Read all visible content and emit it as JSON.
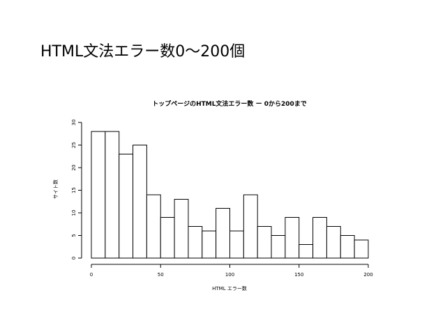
{
  "slide": {
    "title": "HTML文法エラー数0〜200個"
  },
  "chart_data": {
    "type": "bar",
    "title": "トップページのHTML文法エラー数 ー 0から200まで",
    "xlabel": "HTML エラー数",
    "ylabel": "サイト数",
    "bin_width": 10,
    "bin_start": 0,
    "xlim": [
      0,
      200
    ],
    "ylim": [
      0,
      30
    ],
    "x_ticks": [
      0,
      50,
      100,
      150,
      200
    ],
    "y_ticks": [
      0,
      5,
      10,
      15,
      20,
      25,
      30
    ],
    "values": [
      28,
      28,
      23,
      25,
      14,
      9,
      13,
      7,
      6,
      11,
      6,
      14,
      7,
      5,
      9,
      3,
      9,
      7,
      5,
      4
    ],
    "grid": false,
    "colors": {
      "bar_fill": "#ffffff",
      "bar_stroke": "#000000"
    }
  }
}
